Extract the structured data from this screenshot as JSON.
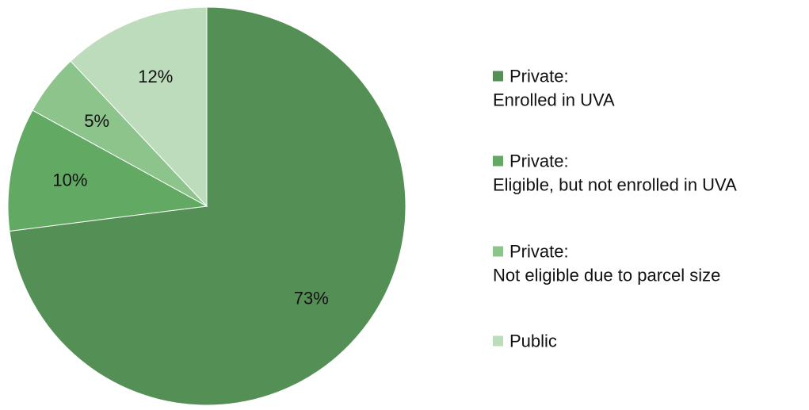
{
  "chart_data": {
    "type": "pie",
    "title": "",
    "start_angle": "12 o'clock",
    "direction": "clockwise",
    "legend_position": "right",
    "slices": [
      {
        "legend_lines": [
          "Private:",
          "Enrolled in UVA"
        ],
        "value": 73,
        "label": "73%",
        "color": "#548f55"
      },
      {
        "legend_lines": [
          "Private:",
          "Eligible, but not enrolled in UVA"
        ],
        "value": 10,
        "label": "10%",
        "color": "#62aa63"
      },
      {
        "legend_lines": [
          "Private:",
          "Not eligible due to parcel size"
        ],
        "value": 5,
        "label": "5%",
        "color": "#8cc48c"
      },
      {
        "legend_lines": [
          "Public"
        ],
        "value": 12,
        "label": "12%",
        "color": "#bcdcbc"
      }
    ]
  }
}
